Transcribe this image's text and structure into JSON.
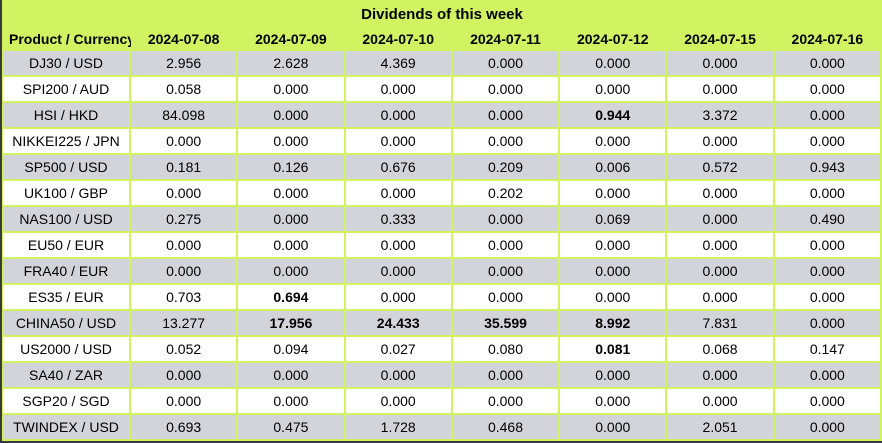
{
  "title": "Dividends of this week",
  "columns": [
    "Product / Currency",
    "2024-07-08",
    "2024-07-09",
    "2024-07-10",
    "2024-07-11",
    "2024-07-12",
    "2024-07-15",
    "2024-07-16"
  ],
  "rows": [
    {
      "product": "DJ30 / USD",
      "values": [
        "2.956",
        "2.628",
        "4.369",
        "0.000",
        "0.000",
        "0.000",
        "0.000"
      ],
      "bold": []
    },
    {
      "product": "SPI200 / AUD",
      "values": [
        "0.058",
        "0.000",
        "0.000",
        "0.000",
        "0.000",
        "0.000",
        "0.000"
      ],
      "bold": []
    },
    {
      "product": "HSI / HKD",
      "values": [
        "84.098",
        "0.000",
        "0.000",
        "0.000",
        "0.944",
        "3.372",
        "0.000"
      ],
      "bold": [
        4
      ]
    },
    {
      "product": "NIKKEI225 / JPN",
      "values": [
        "0.000",
        "0.000",
        "0.000",
        "0.000",
        "0.000",
        "0.000",
        "0.000"
      ],
      "bold": []
    },
    {
      "product": "SP500 / USD",
      "values": [
        "0.181",
        "0.126",
        "0.676",
        "0.209",
        "0.006",
        "0.572",
        "0.943"
      ],
      "bold": []
    },
    {
      "product": "UK100 / GBP",
      "values": [
        "0.000",
        "0.000",
        "0.000",
        "0.202",
        "0.000",
        "0.000",
        "0.000"
      ],
      "bold": []
    },
    {
      "product": "NAS100 / USD",
      "values": [
        "0.275",
        "0.000",
        "0.333",
        "0.000",
        "0.069",
        "0.000",
        "0.490"
      ],
      "bold": []
    },
    {
      "product": "EU50 / EUR",
      "values": [
        "0.000",
        "0.000",
        "0.000",
        "0.000",
        "0.000",
        "0.000",
        "0.000"
      ],
      "bold": []
    },
    {
      "product": "FRA40 / EUR",
      "values": [
        "0.000",
        "0.000",
        "0.000",
        "0.000",
        "0.000",
        "0.000",
        "0.000"
      ],
      "bold": []
    },
    {
      "product": "ES35 / EUR",
      "values": [
        "0.703",
        "0.694",
        "0.000",
        "0.000",
        "0.000",
        "0.000",
        "0.000"
      ],
      "bold": [
        1
      ]
    },
    {
      "product": "CHINA50 / USD",
      "values": [
        "13.277",
        "17.956",
        "24.433",
        "35.599",
        "8.992",
        "7.831",
        "0.000"
      ],
      "bold": [
        1,
        2,
        3,
        4
      ]
    },
    {
      "product": "US2000 / USD",
      "values": [
        "0.052",
        "0.094",
        "0.027",
        "0.080",
        "0.081",
        "0.068",
        "0.147"
      ],
      "bold": [
        4
      ]
    },
    {
      "product": "SA40 / ZAR",
      "values": [
        "0.000",
        "0.000",
        "0.000",
        "0.000",
        "0.000",
        "0.000",
        "0.000"
      ],
      "bold": []
    },
    {
      "product": "SGP20 / SGD",
      "values": [
        "0.000",
        "0.000",
        "0.000",
        "0.000",
        "0.000",
        "0.000",
        "0.000"
      ],
      "bold": []
    },
    {
      "product": "TWINDEX / USD",
      "values": [
        "0.693",
        "0.475",
        "1.728",
        "0.468",
        "0.000",
        "2.051",
        "0.000"
      ],
      "bold": []
    }
  ],
  "colors": {
    "accent_green": "#D2F361",
    "row_gray": "#D3D3DA",
    "row_white": "#FFFFFF",
    "frame_dark": "#3A3A3A",
    "text": "#000000"
  },
  "chart_data": {
    "type": "table",
    "title": "Dividends of this week",
    "columns": [
      "Product / Currency",
      "2024-07-08",
      "2024-07-09",
      "2024-07-10",
      "2024-07-11",
      "2024-07-12",
      "2024-07-15",
      "2024-07-16"
    ],
    "rows": [
      [
        "DJ30 / USD",
        2.956,
        2.628,
        4.369,
        0.0,
        0.0,
        0.0,
        0.0
      ],
      [
        "SPI200 / AUD",
        0.058,
        0.0,
        0.0,
        0.0,
        0.0,
        0.0,
        0.0
      ],
      [
        "HSI / HKD",
        84.098,
        0.0,
        0.0,
        0.0,
        0.944,
        3.372,
        0.0
      ],
      [
        "NIKKEI225 / JPN",
        0.0,
        0.0,
        0.0,
        0.0,
        0.0,
        0.0,
        0.0
      ],
      [
        "SP500 / USD",
        0.181,
        0.126,
        0.676,
        0.209,
        0.006,
        0.572,
        0.943
      ],
      [
        "UK100 / GBP",
        0.0,
        0.0,
        0.0,
        0.202,
        0.0,
        0.0,
        0.0
      ],
      [
        "NAS100 / USD",
        0.275,
        0.0,
        0.333,
        0.0,
        0.069,
        0.0,
        0.49
      ],
      [
        "EU50 / EUR",
        0.0,
        0.0,
        0.0,
        0.0,
        0.0,
        0.0,
        0.0
      ],
      [
        "FRA40 / EUR",
        0.0,
        0.0,
        0.0,
        0.0,
        0.0,
        0.0,
        0.0
      ],
      [
        "ES35 / EUR",
        0.703,
        0.694,
        0.0,
        0.0,
        0.0,
        0.0,
        0.0
      ],
      [
        "CHINA50 / USD",
        13.277,
        17.956,
        24.433,
        35.599,
        8.992,
        7.831,
        0.0
      ],
      [
        "US2000 / USD",
        0.052,
        0.094,
        0.027,
        0.08,
        0.081,
        0.068,
        0.147
      ],
      [
        "SA40 / ZAR",
        0.0,
        0.0,
        0.0,
        0.0,
        0.0,
        0.0,
        0.0
      ],
      [
        "SGP20 / SGD",
        0.0,
        0.0,
        0.0,
        0.0,
        0.0,
        0.0,
        0.0
      ],
      [
        "TWINDEX / USD",
        0.693,
        0.475,
        1.728,
        0.468,
        0.0,
        2.051,
        0.0
      ]
    ]
  }
}
